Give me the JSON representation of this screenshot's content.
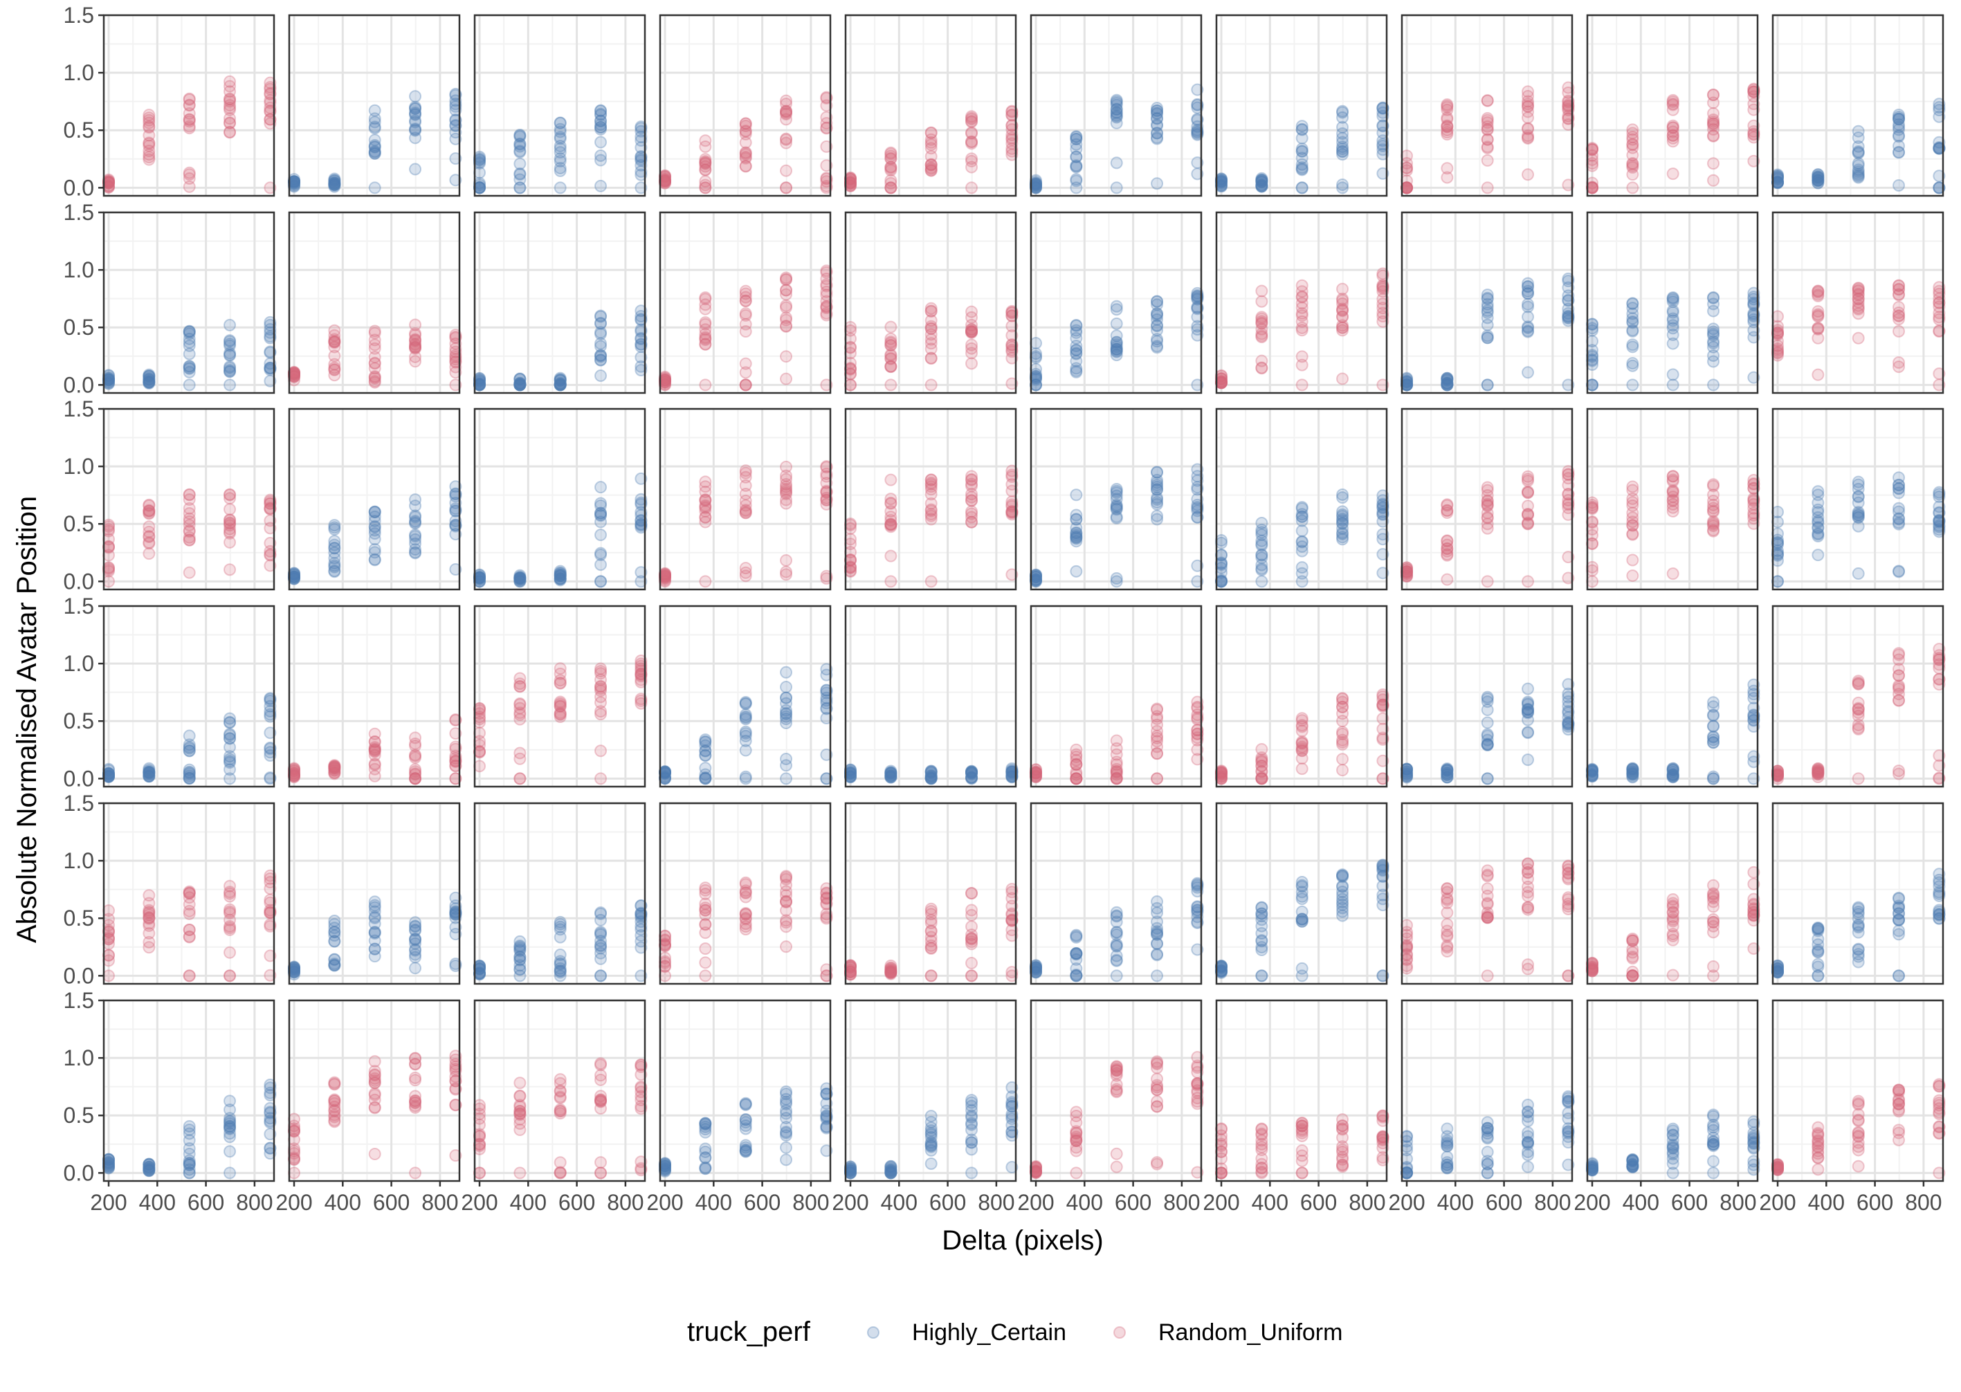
{
  "chart_data": {
    "type": "scatter",
    "facet_grid": {
      "rows": 6,
      "cols": 10
    },
    "xlabel": "Delta (pixels)",
    "ylabel": "Absolute Normalised Avatar Position",
    "x_ticks": [
      200,
      400,
      600,
      800
    ],
    "y_ticks": [
      0.0,
      0.5,
      1.0,
      1.5
    ],
    "y_tick_labels": [
      "0.0",
      "0.5",
      "1.0",
      "1.5"
    ],
    "xlim": [
      180,
      880
    ],
    "ylim": [
      -0.07,
      1.5
    ],
    "x_levels": [
      200,
      366,
      532,
      698,
      864
    ],
    "grid": true,
    "legend": {
      "title": "truck_perf",
      "position": "bottom",
      "entries": [
        {
          "name": "Highly_Certain",
          "color": "#4f7db3"
        },
        {
          "name": "Random_Uniform",
          "color": "#d4687c"
        }
      ]
    },
    "panel_mean_y": [
      {
        "series": "Random_Uniform",
        "means": [
          0.03,
          0.42,
          0.63,
          0.7,
          0.78
        ]
      },
      {
        "series": "Highly_Certain",
        "means": [
          0.04,
          0.04,
          0.48,
          0.6,
          0.63
        ]
      },
      {
        "series": "Highly_Certain",
        "means": [
          0.12,
          0.32,
          0.35,
          0.45,
          0.45
        ]
      },
      {
        "series": "Random_Uniform",
        "means": [
          0.08,
          0.22,
          0.35,
          0.55,
          0.58
        ]
      },
      {
        "series": "Random_Uniform",
        "means": [
          0.05,
          0.12,
          0.3,
          0.4,
          0.45
        ]
      },
      {
        "series": "Highly_Certain",
        "means": [
          0.03,
          0.25,
          0.55,
          0.65,
          0.68
        ]
      },
      {
        "series": "Highly_Certain",
        "means": [
          0.05,
          0.05,
          0.35,
          0.45,
          0.5
        ]
      },
      {
        "series": "Random_Uniform",
        "means": [
          0.1,
          0.5,
          0.55,
          0.65,
          0.68
        ]
      },
      {
        "series": "Random_Uniform",
        "means": [
          0.15,
          0.4,
          0.55,
          0.6,
          0.65
        ]
      },
      {
        "series": "Highly_Certain",
        "means": [
          0.08,
          0.08,
          0.3,
          0.45,
          0.55
        ]
      },
      {
        "series": "Highly_Certain",
        "means": [
          0.05,
          0.05,
          0.25,
          0.3,
          0.32
        ]
      },
      {
        "series": "Random_Uniform",
        "means": [
          0.08,
          0.25,
          0.25,
          0.3,
          0.3
        ]
      },
      {
        "series": "Highly_Certain",
        "means": [
          0.02,
          0.02,
          0.02,
          0.42,
          0.5
        ]
      },
      {
        "series": "Random_Uniform",
        "means": [
          0.03,
          0.55,
          0.63,
          0.72,
          0.78
        ]
      },
      {
        "series": "Random_Uniform",
        "means": [
          0.3,
          0.35,
          0.45,
          0.45,
          0.45
        ]
      },
      {
        "series": "Highly_Certain",
        "means": [
          0.15,
          0.3,
          0.5,
          0.55,
          0.65
        ]
      },
      {
        "series": "Random_Uniform",
        "means": [
          0.05,
          0.6,
          0.65,
          0.7,
          0.75
        ]
      },
      {
        "series": "Highly_Certain",
        "means": [
          0.02,
          0.02,
          0.6,
          0.68,
          0.72
        ]
      },
      {
        "series": "Highly_Certain",
        "means": [
          0.4,
          0.5,
          0.55,
          0.55,
          0.6
        ]
      },
      {
        "series": "Random_Uniform",
        "means": [
          0.45,
          0.6,
          0.62,
          0.65,
          0.65
        ]
      },
      {
        "series": "Random_Uniform",
        "means": [
          0.3,
          0.45,
          0.55,
          0.55,
          0.55
        ]
      },
      {
        "series": "Highly_Certain",
        "means": [
          0.05,
          0.3,
          0.4,
          0.5,
          0.6
        ]
      },
      {
        "series": "Highly_Certain",
        "means": [
          0.02,
          0.02,
          0.05,
          0.62,
          0.68
        ]
      },
      {
        "series": "Random_Uniform",
        "means": [
          0.03,
          0.7,
          0.75,
          0.78,
          0.8
        ]
      },
      {
        "series": "Random_Uniform",
        "means": [
          0.3,
          0.7,
          0.72,
          0.7,
          0.75
        ]
      },
      {
        "series": "Highly_Certain",
        "means": [
          0.03,
          0.55,
          0.7,
          0.75,
          0.75
        ]
      },
      {
        "series": "Highly_Certain",
        "means": [
          0.15,
          0.3,
          0.45,
          0.55,
          0.55
        ]
      },
      {
        "series": "Random_Uniform",
        "means": [
          0.08,
          0.45,
          0.65,
          0.7,
          0.75
        ]
      },
      {
        "series": "Random_Uniform",
        "means": [
          0.5,
          0.6,
          0.7,
          0.65,
          0.7
        ]
      },
      {
        "series": "Highly_Certain",
        "means": [
          0.4,
          0.6,
          0.65,
          0.7,
          0.65
        ]
      },
      {
        "series": "Highly_Certain",
        "means": [
          0.05,
          0.05,
          0.2,
          0.3,
          0.48
        ]
      },
      {
        "series": "Random_Uniform",
        "means": [
          0.05,
          0.08,
          0.2,
          0.15,
          0.3
        ]
      },
      {
        "series": "Random_Uniform",
        "means": [
          0.45,
          0.65,
          0.75,
          0.78,
          0.8
        ]
      },
      {
        "series": "Highly_Certain",
        "means": [
          0.03,
          0.15,
          0.45,
          0.7,
          0.75
        ]
      },
      {
        "series": "Highly_Certain",
        "means": [
          0.05,
          0.03,
          0.03,
          0.03,
          0.05
        ]
      },
      {
        "series": "Random_Uniform",
        "means": [
          0.05,
          0.1,
          0.15,
          0.4,
          0.45
        ]
      },
      {
        "series": "Random_Uniform",
        "means": [
          0.03,
          0.1,
          0.3,
          0.5,
          0.55
        ]
      },
      {
        "series": "Highly_Certain",
        "means": [
          0.05,
          0.05,
          0.5,
          0.6,
          0.65
        ]
      },
      {
        "series": "Highly_Certain",
        "means": [
          0.05,
          0.05,
          0.05,
          0.45,
          0.6
        ]
      },
      {
        "series": "Random_Uniform",
        "means": [
          0.03,
          0.05,
          0.65,
          0.88,
          0.92
        ]
      },
      {
        "series": "Random_Uniform",
        "means": [
          0.35,
          0.5,
          0.55,
          0.6,
          0.65
        ]
      },
      {
        "series": "Highly_Certain",
        "means": [
          0.05,
          0.3,
          0.45,
          0.45,
          0.5
        ]
      },
      {
        "series": "Highly_Certain",
        "means": [
          0.05,
          0.1,
          0.25,
          0.35,
          0.45
        ]
      },
      {
        "series": "Random_Uniform",
        "means": [
          0.15,
          0.55,
          0.6,
          0.65,
          0.7
        ]
      },
      {
        "series": "Random_Uniform",
        "means": [
          0.05,
          0.05,
          0.45,
          0.5,
          0.55
        ]
      },
      {
        "series": "Highly_Certain",
        "means": [
          0.05,
          0.15,
          0.35,
          0.5,
          0.62
        ]
      },
      {
        "series": "Highly_Certain",
        "means": [
          0.05,
          0.4,
          0.6,
          0.68,
          0.75
        ]
      },
      {
        "series": "Random_Uniform",
        "means": [
          0.25,
          0.55,
          0.72,
          0.78,
          0.8
        ]
      },
      {
        "series": "Random_Uniform",
        "means": [
          0.08,
          0.1,
          0.5,
          0.6,
          0.7
        ]
      },
      {
        "series": "Highly_Certain",
        "means": [
          0.05,
          0.25,
          0.4,
          0.55,
          0.7
        ]
      },
      {
        "series": "Highly_Certain",
        "means": [
          0.08,
          0.05,
          0.2,
          0.45,
          0.55
        ]
      },
      {
        "series": "Random_Uniform",
        "means": [
          0.3,
          0.6,
          0.75,
          0.78,
          0.8
        ]
      },
      {
        "series": "Random_Uniform",
        "means": [
          0.4,
          0.6,
          0.72,
          0.75,
          0.78
        ]
      },
      {
        "series": "Highly_Certain",
        "means": [
          0.05,
          0.25,
          0.4,
          0.55,
          0.6
        ]
      },
      {
        "series": "Highly_Certain",
        "means": [
          0.02,
          0.02,
          0.4,
          0.48,
          0.52
        ]
      },
      {
        "series": "Random_Uniform",
        "means": [
          0.03,
          0.4,
          0.75,
          0.75,
          0.8
        ]
      },
      {
        "series": "Random_Uniform",
        "means": [
          0.2,
          0.2,
          0.22,
          0.25,
          0.3
        ]
      },
      {
        "series": "Highly_Certain",
        "means": [
          0.1,
          0.2,
          0.3,
          0.4,
          0.45
        ]
      },
      {
        "series": "Highly_Certain",
        "means": [
          0.05,
          0.08,
          0.25,
          0.3,
          0.25
        ]
      },
      {
        "series": "Random_Uniform",
        "means": [
          0.05,
          0.25,
          0.4,
          0.5,
          0.55
        ]
      }
    ]
  }
}
